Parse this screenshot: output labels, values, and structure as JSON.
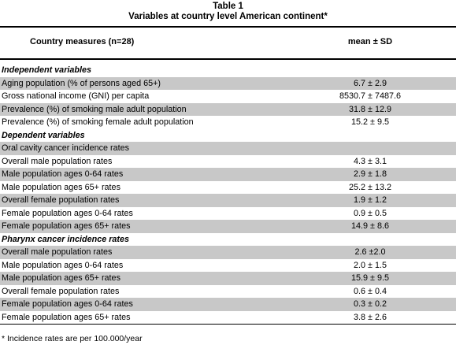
{
  "table": {
    "number": "Table 1",
    "caption": "Variables at country level American continent*",
    "header": {
      "col1": "Country measures (n=28)",
      "col2": "mean ± SD"
    },
    "rows": [
      {
        "label": "Independent  variables",
        "value": "",
        "section": true,
        "shade": false
      },
      {
        "label": "Aging population (% of persons aged 65+)",
        "value": "6.7 ± 2.9",
        "section": false,
        "shade": true
      },
      {
        "label": "Gross national income (GNI) per capita",
        "value": "8530.7 ± 7487.6",
        "section": false,
        "shade": false
      },
      {
        "label": "Prevalence (%) of smoking male adult population",
        "value": "31.8 ± 12.9",
        "section": false,
        "shade": true
      },
      {
        "label": "Prevalence (%) of smoking female adult population",
        "value": "15.2 ± 9.5",
        "section": false,
        "shade": false
      },
      {
        "label": "Dependent  variables",
        "value": "",
        "section": true,
        "shade": false
      },
      {
        "label": "Oral cavity cancer incidence rates",
        "value": "",
        "section": false,
        "shade": true
      },
      {
        "label": "Overall male population rates",
        "value": "4.3 ± 3.1",
        "section": false,
        "shade": false
      },
      {
        "label": "Male population ages 0-64 rates",
        "value": "2.9 ± 1.8",
        "section": false,
        "shade": true
      },
      {
        "label": "Male population ages 65+ rates",
        "value": "25.2 ± 13.2",
        "section": false,
        "shade": false
      },
      {
        "label": "Overall female population rates",
        "value": "1.9 ± 1.2",
        "section": false,
        "shade": true
      },
      {
        "label": "Female population ages 0-64 rates",
        "value": "0.9 ± 0.5",
        "section": false,
        "shade": false
      },
      {
        "label": "Female population ages 65+ rates",
        "value": "14.9 ± 8.6",
        "section": false,
        "shade": true
      },
      {
        "label": "Pharynx cancer incidence rates",
        "value": "",
        "section": true,
        "shade": false
      },
      {
        "label": "Overall male population rates",
        "value": "2.6 ±2.0",
        "section": false,
        "shade": true
      },
      {
        "label": "Male population ages 0-64 rates",
        "value": "2.0 ± 1.5",
        "section": false,
        "shade": false
      },
      {
        "label": "Male population ages 65+ rates",
        "value": "15.9 ± 9.5",
        "section": false,
        "shade": true
      },
      {
        "label": "Overall female population rates",
        "value": "0.6 ± 0.4",
        "section": false,
        "shade": false
      },
      {
        "label": "Female population ages 0-64 rates",
        "value": "0.3 ± 0.2",
        "section": false,
        "shade": true
      },
      {
        "label": "Female population ages 65+ rates",
        "value": "3.8 ± 2.6",
        "section": false,
        "shade": false
      }
    ],
    "footnote": "* Incidence rates are per 100.000/year"
  }
}
